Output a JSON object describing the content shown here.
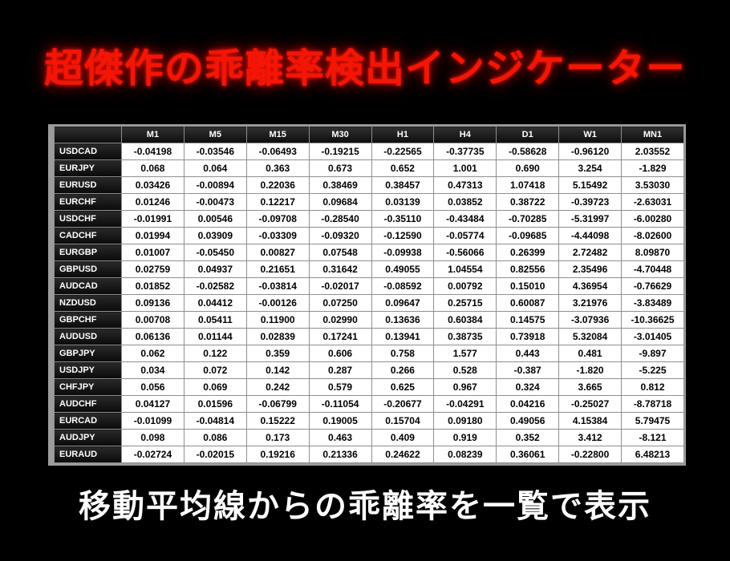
{
  "title": "超傑作の乖離率検出インジケーター",
  "subtitle": "移動平均線からの乖離率を一覧で表示",
  "colors": {
    "background": "#000000",
    "title_red": "#f51505",
    "caption_white": "#ffffff",
    "table_border": "#8f8f8f",
    "table_frame": "#9c9c9c",
    "header_cell_bg": "#141414",
    "value_cell_bg": "#ffffff",
    "value_text": "#000000"
  },
  "table": {
    "corner": "",
    "columns": [
      "M1",
      "M5",
      "M15",
      "M30",
      "H1",
      "H4",
      "D1",
      "W1",
      "MN1"
    ],
    "rows": [
      {
        "pair": "USDCAD",
        "values": [
          "-0.04198",
          "-0.03546",
          "-0.06493",
          "-0.19215",
          "-0.22565",
          "-0.37735",
          "-0.58628",
          "-0.96120",
          "2.03552"
        ]
      },
      {
        "pair": "EURJPY",
        "values": [
          "0.068",
          "0.064",
          "0.363",
          "0.673",
          "0.652",
          "1.001",
          "0.690",
          "3.254",
          "-1.829"
        ]
      },
      {
        "pair": "EURUSD",
        "values": [
          "0.03426",
          "-0.00894",
          "0.22036",
          "0.38469",
          "0.38457",
          "0.47313",
          "1.07418",
          "5.15492",
          "3.53030"
        ]
      },
      {
        "pair": "EURCHF",
        "values": [
          "0.01246",
          "-0.00473",
          "0.12217",
          "0.09684",
          "0.03139",
          "0.03852",
          "0.38722",
          "-0.39723",
          "-2.63031"
        ]
      },
      {
        "pair": "USDCHF",
        "values": [
          "-0.01991",
          "0.00546",
          "-0.09708",
          "-0.28540",
          "-0.35110",
          "-0.43484",
          "-0.70285",
          "-5.31997",
          "-6.00280"
        ]
      },
      {
        "pair": "CADCHF",
        "values": [
          "0.01994",
          "0.03909",
          "-0.03309",
          "-0.09320",
          "-0.12590",
          "-0.05774",
          "-0.09685",
          "-4.44098",
          "-8.02600"
        ]
      },
      {
        "pair": "EURGBP",
        "values": [
          "0.01007",
          "-0.05450",
          "0.00827",
          "0.07548",
          "-0.09938",
          "-0.56066",
          "0.26399",
          "2.72482",
          "8.09870"
        ]
      },
      {
        "pair": "GBPUSD",
        "values": [
          "0.02759",
          "0.04937",
          "0.21651",
          "0.31642",
          "0.49055",
          "1.04554",
          "0.82556",
          "2.35496",
          "-4.70448"
        ]
      },
      {
        "pair": "AUDCAD",
        "values": [
          "0.01852",
          "-0.02582",
          "-0.03814",
          "-0.02017",
          "-0.08592",
          "0.00792",
          "0.15010",
          "4.36954",
          "-0.76629"
        ]
      },
      {
        "pair": "NZDUSD",
        "values": [
          "0.09136",
          "0.04412",
          "-0.00126",
          "0.07250",
          "0.09647",
          "0.25715",
          "0.60087",
          "3.21976",
          "-3.83489"
        ]
      },
      {
        "pair": "GBPCHF",
        "values": [
          "0.00708",
          "0.05411",
          "0.11900",
          "0.02990",
          "0.13636",
          "0.60384",
          "0.14575",
          "-3.07936",
          "-10.36625"
        ]
      },
      {
        "pair": "AUDUSD",
        "values": [
          "0.06136",
          "0.01144",
          "0.02839",
          "0.17241",
          "0.13941",
          "0.38735",
          "0.73918",
          "5.32084",
          "-3.01405"
        ]
      },
      {
        "pair": "GBPJPY",
        "values": [
          "0.062",
          "0.122",
          "0.359",
          "0.606",
          "0.758",
          "1.577",
          "0.443",
          "0.481",
          "-9.897"
        ]
      },
      {
        "pair": "USDJPY",
        "values": [
          "0.034",
          "0.072",
          "0.142",
          "0.287",
          "0.266",
          "0.528",
          "-0.387",
          "-1.820",
          "-5.225"
        ]
      },
      {
        "pair": "CHFJPY",
        "values": [
          "0.056",
          "0.069",
          "0.242",
          "0.579",
          "0.625",
          "0.967",
          "0.324",
          "3.665",
          "0.812"
        ]
      },
      {
        "pair": "AUDCHF",
        "values": [
          "0.04127",
          "0.01596",
          "-0.06799",
          "-0.11054",
          "-0.20677",
          "-0.04291",
          "0.04216",
          "-0.25027",
          "-8.78718"
        ]
      },
      {
        "pair": "EURCAD",
        "values": [
          "-0.01099",
          "-0.04814",
          "0.15222",
          "0.19005",
          "0.15704",
          "0.09180",
          "0.49056",
          "4.15384",
          "5.79475"
        ]
      },
      {
        "pair": "AUDJPY",
        "values": [
          "0.098",
          "0.086",
          "0.173",
          "0.463",
          "0.409",
          "0.919",
          "0.352",
          "3.412",
          "-8.121"
        ]
      },
      {
        "pair": "EURAUD",
        "values": [
          "-0.02724",
          "-0.02015",
          "0.19216",
          "0.21336",
          "0.24622",
          "0.08239",
          "0.36061",
          "-0.22800",
          "6.48213"
        ]
      }
    ]
  }
}
